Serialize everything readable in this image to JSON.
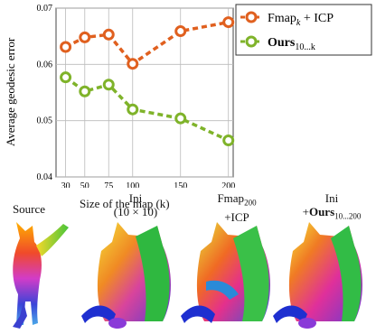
{
  "chart_data": {
    "type": "line",
    "x": [
      30,
      50,
      75,
      100,
      150,
      200
    ],
    "xticks": [
      "30",
      "50",
      "75",
      "100",
      "150",
      "200"
    ],
    "xlabel": "Size of the map (k)",
    "ylabel": "Average geodesic error",
    "ylim": [
      0.04,
      0.07
    ],
    "yticks": [
      "0.04",
      "0.05",
      "0.06",
      "0.07"
    ],
    "grid": true,
    "legend_position": "outside-right-top",
    "series": [
      {
        "name": "Fmap_k + ICP",
        "color": "#e0601f",
        "values": [
          0.0631,
          0.0648,
          0.0653,
          0.0601,
          0.0659,
          0.0675
        ]
      },
      {
        "name": "Ours_10...k",
        "color": "#7fb32a",
        "values": [
          0.0577,
          0.0552,
          0.0564,
          0.052,
          0.0504,
          0.0465
        ]
      }
    ]
  },
  "legend": {
    "fmap_main": "Fmap",
    "fmap_sub": "k",
    "fmap_rest": " + ICP",
    "ours_main": "Ours",
    "ours_sub": "10...k"
  },
  "captions": {
    "source": "Source",
    "ini_line1": "Ini",
    "ini_line2": "(10 × 10)",
    "fmap_line1_main": "Fmap",
    "fmap_line1_sub": "200",
    "fmap_line2": "+ICP",
    "ours_line1": "Ini",
    "ours_line2_prefix": "+",
    "ours_line2_main": "Ours",
    "ours_line2_sub": "10...200"
  }
}
